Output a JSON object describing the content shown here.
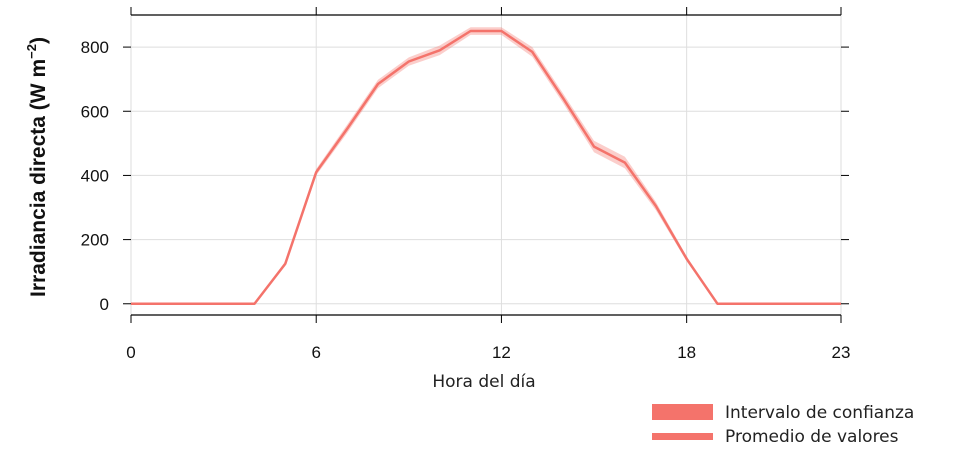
{
  "chart_data": {
    "type": "line",
    "xlabel": "Hora del día",
    "ylabel_main": "Irradiancia directa (W m",
    "ylabel_exp": "−2",
    "ylabel_close": ")",
    "xlim": [
      0,
      23
    ],
    "ylim": [
      -35,
      900
    ],
    "xticks": [
      0,
      6,
      12,
      18,
      23
    ],
    "yticks": [
      0,
      200,
      400,
      600,
      800
    ],
    "grid": true,
    "legend_position": "bottom-right",
    "color": "#f4736b",
    "series": [
      {
        "name": "Promedio de valores",
        "x": [
          0,
          1,
          2,
          3,
          4,
          5,
          6,
          7,
          8,
          9,
          10,
          11,
          12,
          13,
          14,
          15,
          16,
          17,
          18,
          19,
          20,
          21,
          22,
          23
        ],
        "y": [
          0,
          0,
          0,
          0,
          0,
          125,
          410,
          545,
          685,
          755,
          790,
          850,
          850,
          785,
          640,
          490,
          440,
          305,
          140,
          0,
          0,
          0,
          0,
          0
        ]
      }
    ],
    "band": {
      "name": "Intervalo de confianza",
      "x": [
        0,
        1,
        2,
        3,
        4,
        5,
        6,
        7,
        8,
        9,
        10,
        11,
        12,
        13,
        14,
        15,
        16,
        17,
        18,
        19,
        20,
        21,
        22,
        23
      ],
      "lower": [
        0,
        0,
        0,
        0,
        0,
        118,
        400,
        532,
        672,
        742,
        775,
        838,
        838,
        770,
        625,
        472,
        422,
        292,
        132,
        0,
        0,
        0,
        0,
        0
      ],
      "upper": [
        0,
        0,
        0,
        0,
        0,
        132,
        420,
        558,
        698,
        768,
        805,
        862,
        862,
        800,
        655,
        508,
        458,
        318,
        148,
        0,
        0,
        0,
        0,
        0
      ]
    }
  },
  "legend": {
    "band_label": "Intervalo de confianza",
    "line_label": "Promedio de valores"
  }
}
